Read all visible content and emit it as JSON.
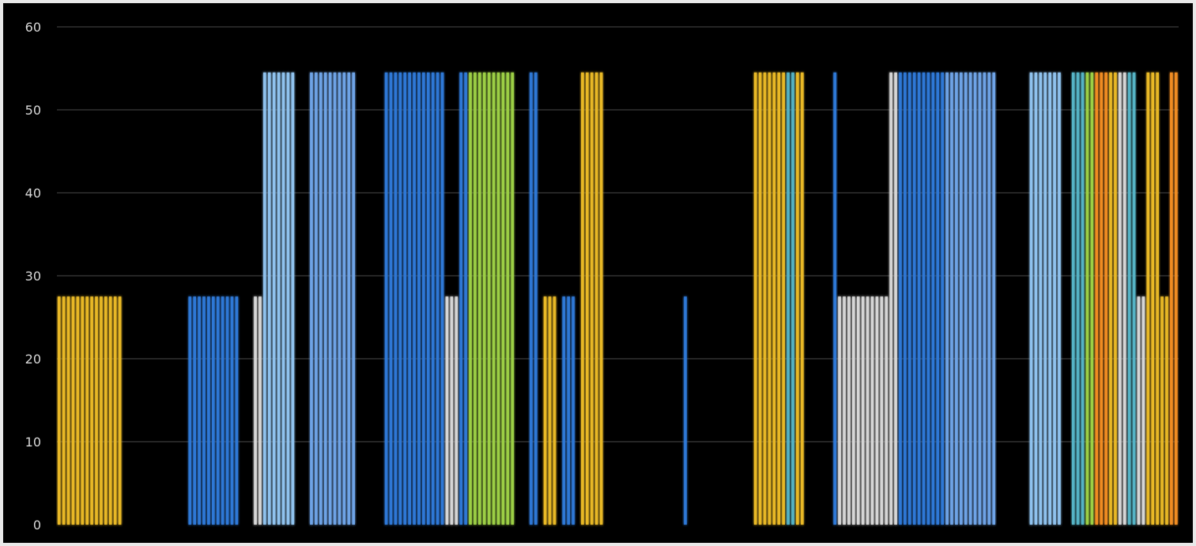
{
  "chart_data": {
    "type": "bar",
    "title": "",
    "xlabel": "",
    "ylabel": "",
    "ylim": [
      0,
      60
    ],
    "yticks": [
      0,
      10,
      20,
      30,
      40,
      50,
      60
    ],
    "ytick_labels": [
      "0",
      "10",
      "20",
      "30",
      "40",
      "50",
      "60"
    ],
    "grid": true,
    "legend": "none",
    "x_count": 240,
    "colors": {
      "yellow": "#e8b825",
      "blue": "#2f78d6",
      "lightblue": "#8fc2ee",
      "midblue": "#6ea3e6",
      "white": "#d6d6d6",
      "green": "#9ccf45",
      "orange": "#f08c24",
      "teal": "#55b3c5",
      "background": "#000000",
      "gridline": "#4a4a4a",
      "ticklabel": "#d8d8d8"
    },
    "segments": [
      {
        "start": 1,
        "end": 14,
        "value": 27.5,
        "color": "yellow"
      },
      {
        "start": 29,
        "end": 39,
        "value": 27.5,
        "color": "blue"
      },
      {
        "start": 43,
        "end": 44,
        "value": 27.5,
        "color": "white"
      },
      {
        "start": 45,
        "end": 51,
        "value": 54.5,
        "color": "lightblue"
      },
      {
        "start": 55,
        "end": 64,
        "value": 54.5,
        "color": "midblue"
      },
      {
        "start": 71,
        "end": 83,
        "value": 54.5,
        "color": "blue"
      },
      {
        "start": 84,
        "end": 86,
        "value": 27.5,
        "color": "white"
      },
      {
        "start": 87,
        "end": 88,
        "value": 54.5,
        "color": "blue"
      },
      {
        "start": 89,
        "end": 98,
        "value": 54.5,
        "color": "green"
      },
      {
        "start": 102,
        "end": 103,
        "value": 54.5,
        "color": "blue"
      },
      {
        "start": 105,
        "end": 107,
        "value": 27.5,
        "color": "yellow"
      },
      {
        "start": 109,
        "end": 111,
        "value": 27.5,
        "color": "blue"
      },
      {
        "start": 113,
        "end": 117,
        "value": 54.5,
        "color": "yellow"
      },
      {
        "start": 135,
        "end": 135,
        "value": 27.5,
        "color": "blue"
      },
      {
        "start": 150,
        "end": 156,
        "value": 54.5,
        "color": "yellow"
      },
      {
        "start": 157,
        "end": 158,
        "value": 54.5,
        "color": "teal"
      },
      {
        "start": 159,
        "end": 160,
        "value": 54.5,
        "color": "yellow"
      },
      {
        "start": 167,
        "end": 167,
        "value": 54.5,
        "color": "blue"
      },
      {
        "start": 168,
        "end": 178,
        "value": 27.5,
        "color": "white"
      },
      {
        "start": 179,
        "end": 180,
        "value": 54.5,
        "color": "white"
      },
      {
        "start": 181,
        "end": 190,
        "value": 54.5,
        "color": "blue"
      },
      {
        "start": 191,
        "end": 201,
        "value": 54.5,
        "color": "midblue"
      },
      {
        "start": 209,
        "end": 215,
        "value": 54.5,
        "color": "lightblue"
      },
      {
        "start": 218,
        "end": 220,
        "value": 54.5,
        "color": "teal"
      },
      {
        "start": 221,
        "end": 222,
        "value": 54.5,
        "color": "green"
      },
      {
        "start": 223,
        "end": 225,
        "value": 54.5,
        "color": "orange"
      },
      {
        "start": 226,
        "end": 227,
        "value": 54.5,
        "color": "yellow"
      },
      {
        "start": 228,
        "end": 229,
        "value": 54.5,
        "color": "white"
      },
      {
        "start": 230,
        "end": 231,
        "value": 54.5,
        "color": "teal"
      },
      {
        "start": 232,
        "end": 233,
        "value": 27.5,
        "color": "white"
      },
      {
        "start": 234,
        "end": 236,
        "value": 54.5,
        "color": "yellow"
      },
      {
        "start": 237,
        "end": 238,
        "value": 27.5,
        "color": "yellow"
      },
      {
        "start": 239,
        "end": 240,
        "value": 54.5,
        "color": "orange"
      }
    ]
  }
}
